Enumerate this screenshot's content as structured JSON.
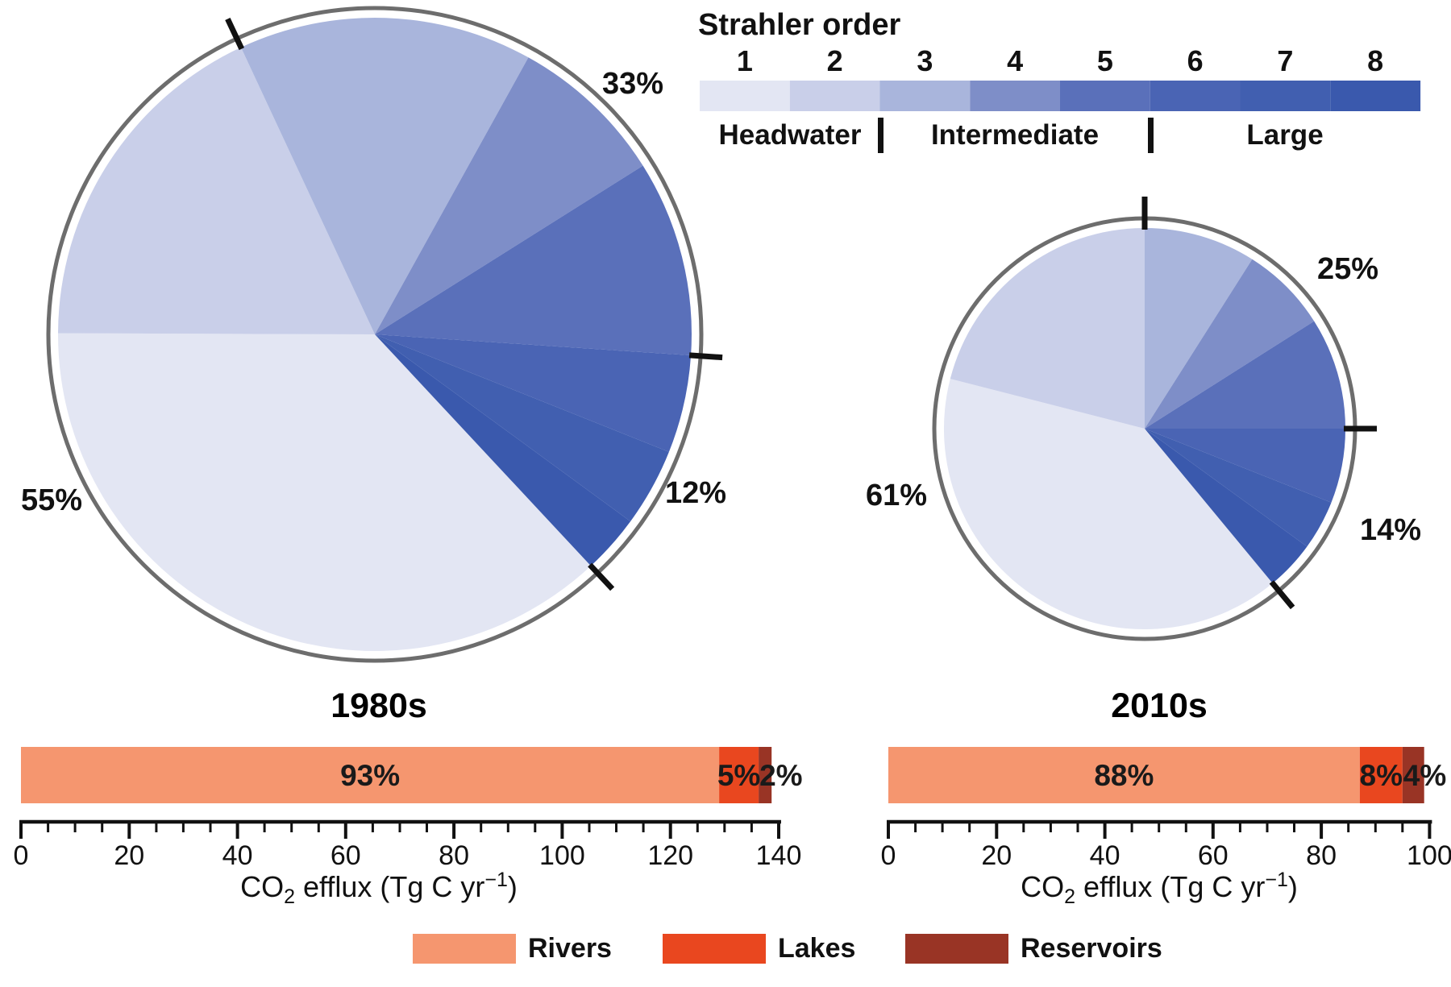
{
  "figure": {
    "background": "#ffffff",
    "strahler_legend": {
      "title": "Strahler order",
      "orders": [
        "1",
        "2",
        "3",
        "4",
        "5",
        "6",
        "7",
        "8"
      ],
      "colors": [
        "#e3e6f3",
        "#c9cfe9",
        "#a9b5dc",
        "#7e8ec8",
        "#5a70ba",
        "#4a64b4",
        "#415fb0",
        "#3a59ad"
      ],
      "group_labels": [
        "Headwater",
        "Intermediate",
        "Large"
      ],
      "group_divider_after_order": [
        2,
        5
      ],
      "ring_color": "#6d6d6d",
      "tick_color": "#111111"
    },
    "series_legend": [
      {
        "label": "Rivers",
        "color": "#f5966f"
      },
      {
        "label": "Lakes",
        "color": "#e9471f"
      },
      {
        "label": "Reservoirs",
        "color": "#993425"
      }
    ]
  },
  "chart_data": [
    {
      "type": "pie",
      "id": "pie-1980s",
      "title": "1980s",
      "categories": [
        "1",
        "2",
        "3",
        "4",
        "5",
        "6",
        "7",
        "8"
      ],
      "values_pct": [
        37,
        18,
        15,
        8,
        10,
        5,
        4,
        3
      ],
      "start_angle_deg": 137,
      "group_pct_labels": [
        {
          "group": "Headwater",
          "text": "55%"
        },
        {
          "group": "Intermediate",
          "text": "33%"
        },
        {
          "group": "Large",
          "text": "12%"
        }
      ]
    },
    {
      "type": "pie",
      "id": "pie-2010s",
      "title": "2010s",
      "categories": [
        "1",
        "2",
        "3",
        "4",
        "5",
        "6",
        "7",
        "8"
      ],
      "values_pct": [
        40,
        21,
        9,
        7,
        9,
        6,
        4,
        4
      ],
      "start_angle_deg": 140.4,
      "group_pct_labels": [
        {
          "group": "Headwater",
          "text": "61%"
        },
        {
          "group": "Intermediate",
          "text": "25%"
        },
        {
          "group": "Large",
          "text": "14%"
        }
      ]
    },
    {
      "type": "stacked-bar",
      "id": "bar-1980s",
      "period": "1980s",
      "total": 138.7,
      "segments": [
        {
          "name": "Rivers",
          "value": 129.0,
          "label": "93%"
        },
        {
          "name": "Lakes",
          "value": 7.3,
          "label": "5%"
        },
        {
          "name": "Reservoirs",
          "value": 2.4,
          "label": "2%"
        }
      ],
      "axis": {
        "min": 0,
        "max": 140,
        "major_step": 20,
        "minor_step": 5,
        "tick_labels": [
          "0",
          "20",
          "40",
          "60",
          "80",
          "100",
          "120",
          "140"
        ]
      }
    },
    {
      "type": "stacked-bar",
      "id": "bar-2010s",
      "period": "2010s",
      "total": 99.0,
      "segments": [
        {
          "name": "Rivers",
          "value": 87.1,
          "label": "88%"
        },
        {
          "name": "Lakes",
          "value": 7.9,
          "label": "8%"
        },
        {
          "name": "Reservoirs",
          "value": 4.0,
          "label": "4%"
        }
      ],
      "axis": {
        "min": 0,
        "max": 100,
        "major_step": 20,
        "minor_step": 5,
        "tick_labels": [
          "0",
          "20",
          "40",
          "60",
          "80",
          "100"
        ]
      }
    }
  ],
  "axis_title": {
    "pre": "CO",
    "sub": "2",
    "mid": " efflux (Tg C yr",
    "sup": "−1",
    "post": ")"
  }
}
